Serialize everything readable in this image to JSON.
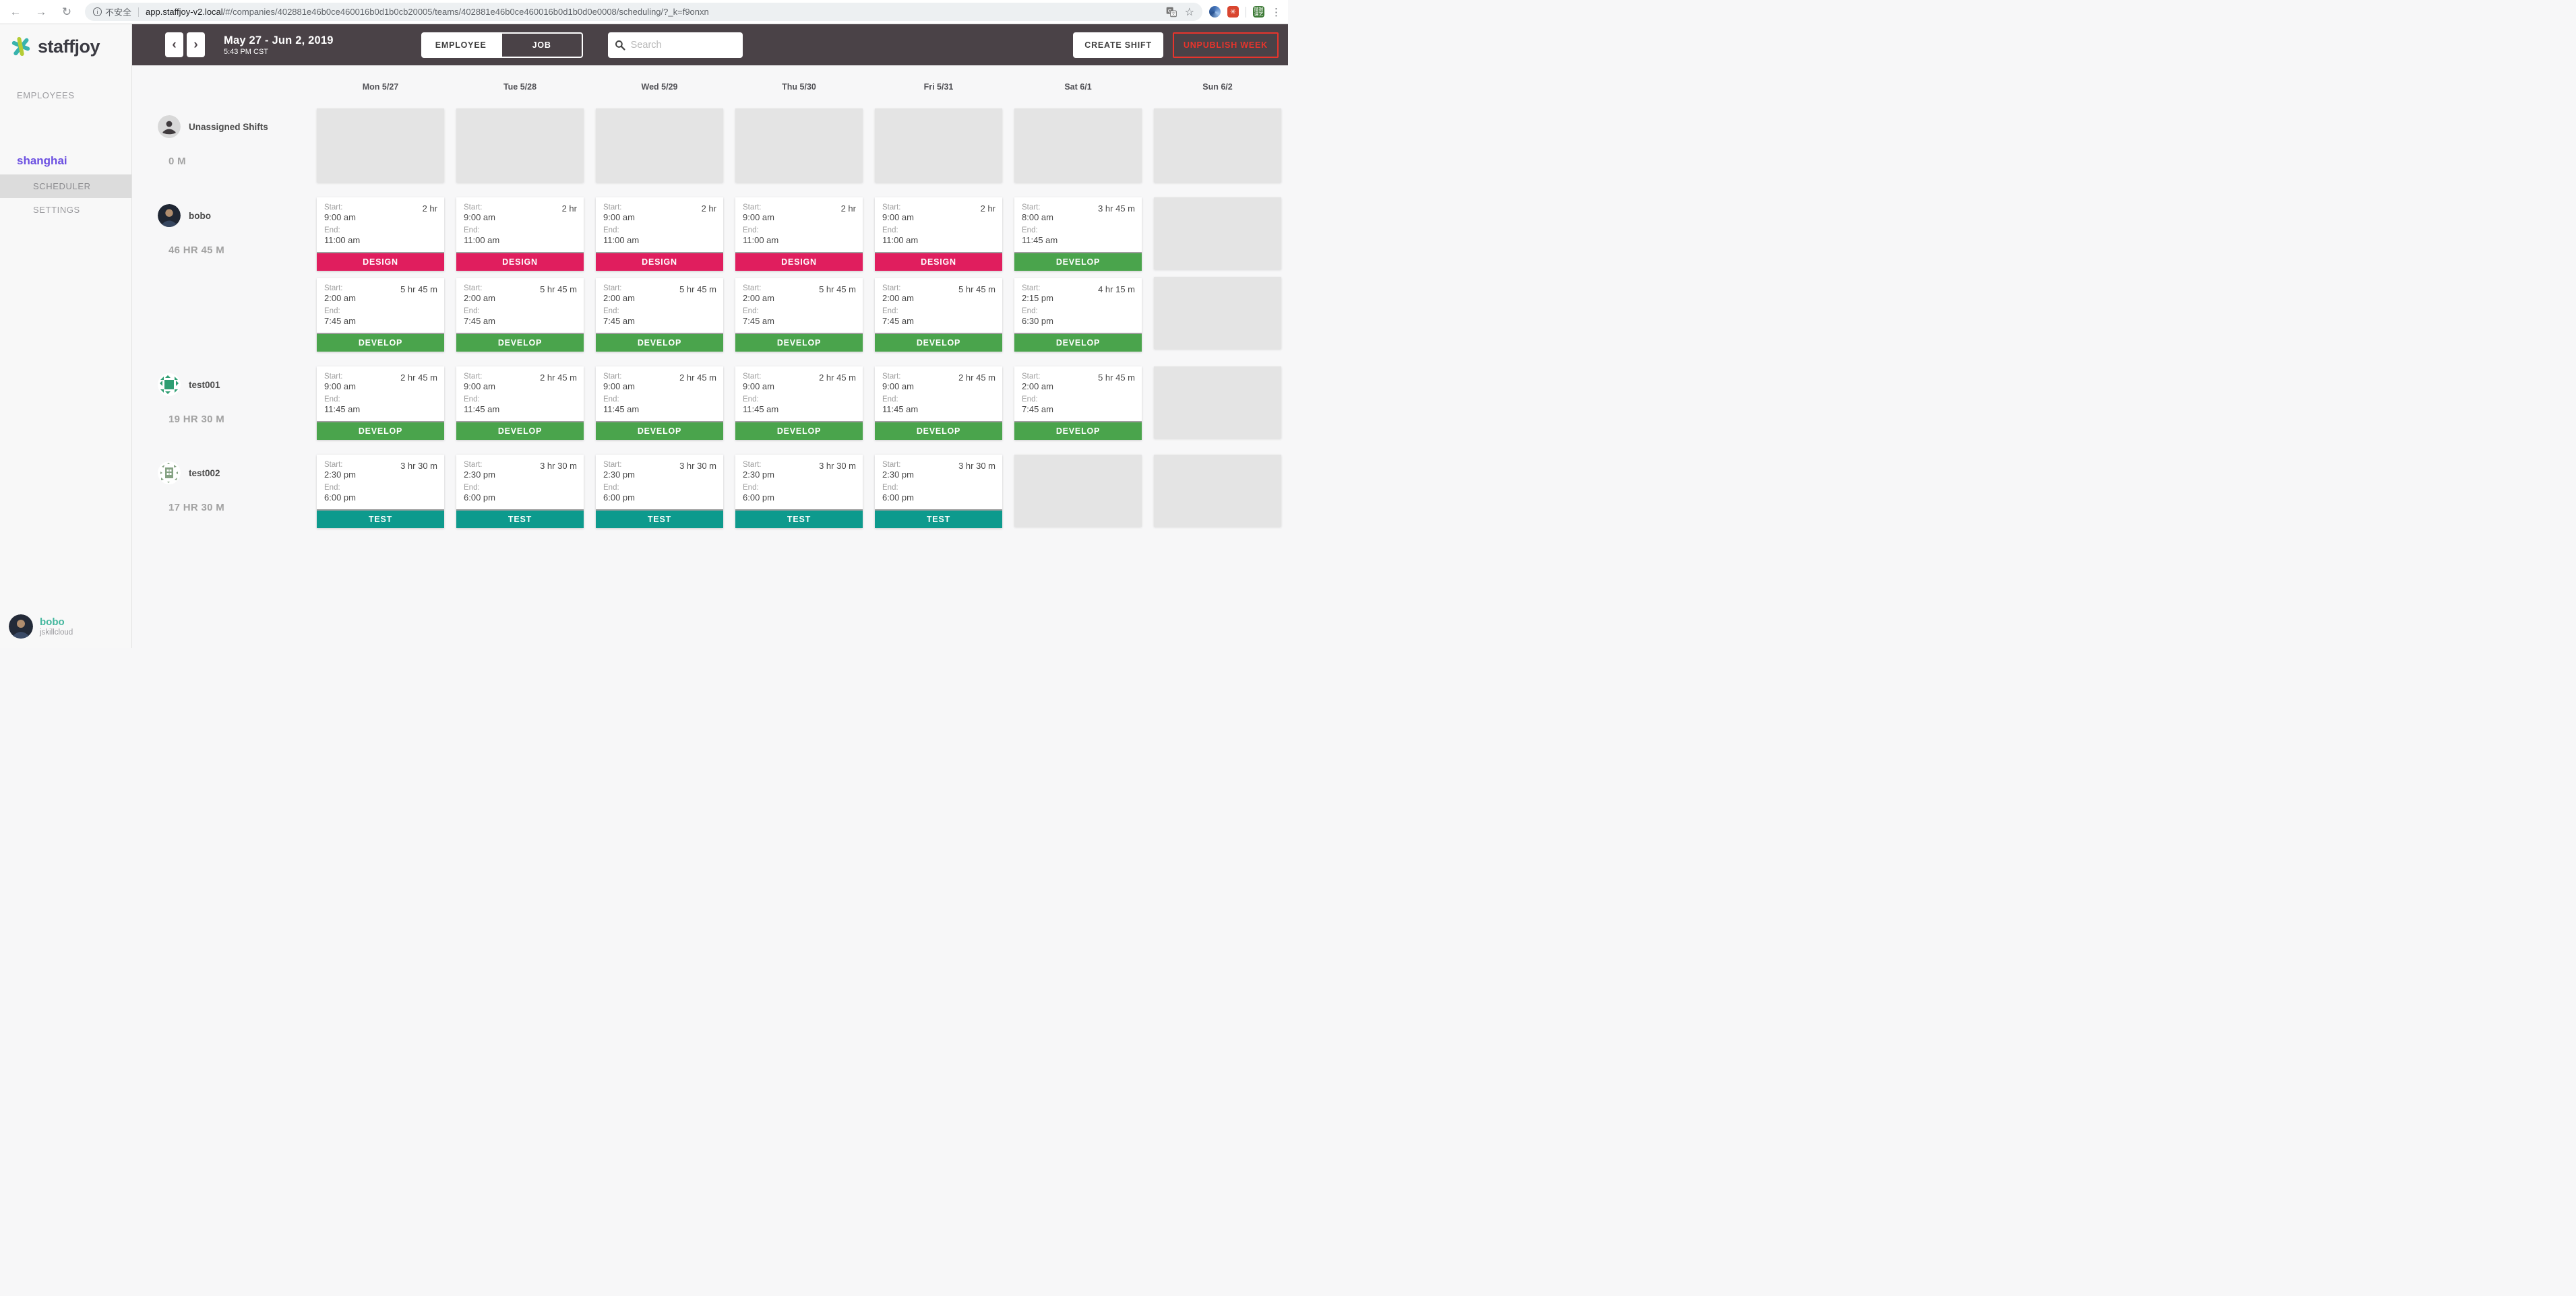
{
  "browser": {
    "security_label": "不安全",
    "url_host": "app.staffjoy-v2.local",
    "url_path": "/#/companies/402881e46b0ce460016b0d1b0cb20005/teams/402881e46b0ce460016b0d1b0d0e0008/scheduling/?_k=f9onxn",
    "extension_green_text": "微掘课艺"
  },
  "sidebar": {
    "brand": "staffjoy",
    "employees_label": "EMPLOYEES",
    "team_name": "shanghai",
    "scheduler_label": "SCHEDULER",
    "settings_label": "SETTINGS",
    "user": {
      "name": "bobo",
      "company": "jskillcloud"
    }
  },
  "topbar": {
    "date_range": "May 27 - Jun 2, 2019",
    "time": "5:43 PM CST",
    "toggle_employee": "EMPLOYEE",
    "toggle_job": "JOB",
    "search_placeholder": "Search",
    "create_shift": "CREATE SHIFT",
    "unpublish_week": "UNPUBLISH WEEK"
  },
  "jobs": {
    "DESIGN": "#e01e5e",
    "DEVELOP": "#4aa44c",
    "TEST": "#0d9a8d"
  },
  "calendar": {
    "days": [
      "Mon 5/27",
      "Tue 5/28",
      "Wed 5/29",
      "Thu 5/30",
      "Fri 5/31",
      "Sat 6/1",
      "Sun 6/2"
    ],
    "start_label": "Start:",
    "end_label": "End:",
    "rows": [
      {
        "name": "Unassigned Shifts",
        "hours": "0 M",
        "avatar": "silhouette",
        "cells": [
          [
            {
              "empty": "tall"
            }
          ],
          [
            {
              "empty": "tall"
            }
          ],
          [
            {
              "empty": "tall"
            }
          ],
          [
            {
              "empty": "tall"
            }
          ],
          [
            {
              "empty": "tall"
            }
          ],
          [
            {
              "empty": "tall"
            }
          ],
          [
            {
              "empty": "tall"
            }
          ]
        ]
      },
      {
        "name": "bobo",
        "hours": "46 HR 45 M",
        "avatar": "photo",
        "cells": [
          [
            {
              "start": "9:00 am",
              "end": "11:00 am",
              "duration": "2 hr",
              "job": "DESIGN"
            },
            {
              "start": "2:00 am",
              "end": "7:45 am",
              "duration": "5 hr 45 m",
              "job": "DEVELOP"
            }
          ],
          [
            {
              "start": "9:00 am",
              "end": "11:00 am",
              "duration": "2 hr",
              "job": "DESIGN"
            },
            {
              "start": "2:00 am",
              "end": "7:45 am",
              "duration": "5 hr 45 m",
              "job": "DEVELOP"
            }
          ],
          [
            {
              "start": "9:00 am",
              "end": "11:00 am",
              "duration": "2 hr",
              "job": "DESIGN"
            },
            {
              "start": "2:00 am",
              "end": "7:45 am",
              "duration": "5 hr 45 m",
              "job": "DEVELOP"
            }
          ],
          [
            {
              "start": "9:00 am",
              "end": "11:00 am",
              "duration": "2 hr",
              "job": "DESIGN"
            },
            {
              "start": "2:00 am",
              "end": "7:45 am",
              "duration": "5 hr 45 m",
              "job": "DEVELOP"
            }
          ],
          [
            {
              "start": "9:00 am",
              "end": "11:00 am",
              "duration": "2 hr",
              "job": "DESIGN"
            },
            {
              "start": "2:00 am",
              "end": "7:45 am",
              "duration": "5 hr 45 m",
              "job": "DEVELOP"
            }
          ],
          [
            {
              "start": "8:00 am",
              "end": "11:45 am",
              "duration": "3 hr 45 m",
              "job": "DEVELOP"
            },
            {
              "start": "2:15 pm",
              "end": "6:30 pm",
              "duration": "4 hr 15 m",
              "job": "DEVELOP"
            }
          ],
          [
            {
              "empty": "card"
            },
            {
              "empty": "card"
            }
          ]
        ]
      },
      {
        "name": "test001",
        "hours": "19 HR 30 M",
        "avatar": "identicon-green",
        "cells": [
          [
            {
              "start": "9:00 am",
              "end": "11:45 am",
              "duration": "2 hr 45 m",
              "job": "DEVELOP"
            }
          ],
          [
            {
              "start": "9:00 am",
              "end": "11:45 am",
              "duration": "2 hr 45 m",
              "job": "DEVELOP"
            }
          ],
          [
            {
              "start": "9:00 am",
              "end": "11:45 am",
              "duration": "2 hr 45 m",
              "job": "DEVELOP"
            }
          ],
          [
            {
              "start": "9:00 am",
              "end": "11:45 am",
              "duration": "2 hr 45 m",
              "job": "DEVELOP"
            }
          ],
          [
            {
              "start": "9:00 am",
              "end": "11:45 am",
              "duration": "2 hr 45 m",
              "job": "DEVELOP"
            }
          ],
          [
            {
              "start": "2:00 am",
              "end": "7:45 am",
              "duration": "5 hr 45 m",
              "job": "DEVELOP"
            }
          ],
          [
            {
              "empty": "card"
            }
          ]
        ]
      },
      {
        "name": "test002",
        "hours": "17 HR 30 M",
        "avatar": "identicon-sage",
        "cells": [
          [
            {
              "start": "2:30 pm",
              "end": "6:00 pm",
              "duration": "3 hr 30 m",
              "job": "TEST"
            }
          ],
          [
            {
              "start": "2:30 pm",
              "end": "6:00 pm",
              "duration": "3 hr 30 m",
              "job": "TEST"
            }
          ],
          [
            {
              "start": "2:30 pm",
              "end": "6:00 pm",
              "duration": "3 hr 30 m",
              "job": "TEST"
            }
          ],
          [
            {
              "start": "2:30 pm",
              "end": "6:00 pm",
              "duration": "3 hr 30 m",
              "job": "TEST"
            }
          ],
          [
            {
              "start": "2:30 pm",
              "end": "6:00 pm",
              "duration": "3 hr 30 m",
              "job": "TEST"
            }
          ],
          [
            {
              "empty": "card"
            }
          ],
          [
            {
              "empty": "card"
            }
          ]
        ]
      }
    ]
  }
}
